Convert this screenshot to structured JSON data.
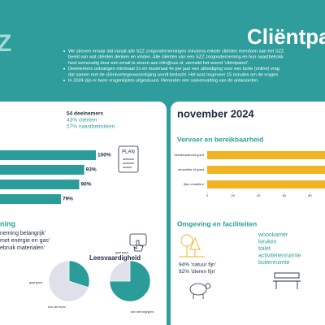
{
  "header": {
    "logo": "Z",
    "title": "Cliëntpa",
    "bullets": [
      [
        "We streven ernaar dat vanuit alle SZZ zorgondernemingen minstens enkele cliënten meedoen aan het SZZ",
        "beeld van wat cliënten denken en vinden. Alle cliënten van een SZZ zorgonderneming en hun naastbetrokk",
        "heel eenvoudig door een email te sturen aan info@szz.nl, vermeld het woord 'cliëntpanel'."
      ],
      [
        "Deelnemers ontvangen minimaal 2x en maximaal 4x per jaar een uitnodiging voor een korte (online) vrag",
        "dat samen met de cliëntvertegenwoordiging wordt bedacht. Het kost ongeveer 15 minuten om de vragen"
      ],
      [
        "In 2024 zijn er twee vragenlijsten uitgestuurd. Hieronder een samenvatting van de antwoorden."
      ]
    ]
  },
  "participants": {
    "total": "54 deelnemers",
    "clients": "43% cliënten",
    "relatives": "57% naastbetrokken"
  },
  "left_chart": {
    "type": "bar",
    "values": [
      100,
      93,
      90,
      79
    ],
    "value_labels": [
      "100%",
      "93%",
      "90%",
      "79%"
    ],
    "color": "#2a9d9a"
  },
  "plan_icon": "PLAN",
  "left_texts": {
    "heading": "ning",
    "lines": [
      "neming belangrijk'",
      "met energie en gas'",
      "ebruik materialen'"
    ]
  },
  "reading": {
    "title": "Leesvaardigheid",
    "pies": [
      {
        "type": "pie",
        "values": [
          30,
          70
        ],
        "labels": [
          "gaat goed",
          "kan niet lezen"
        ],
        "colors": [
          "#2a9d9a",
          "#dfe1ea"
        ]
      },
      {
        "type": "pie",
        "values": [
          75,
          25
        ],
        "labels": [
          "kan niet begrijpen",
          "gaat goed"
        ],
        "colors": [
          "#2a9d9a",
          "#dfe1ea"
        ]
      }
    ]
  },
  "right": {
    "date": "november 2024",
    "chart_title": "Vervoer en bereikbaarheid",
    "chart": {
      "type": "bar",
      "categories": [
        "bereikbaarheid goed",
        "eenzelfde rit goed",
        "fijne chauffeur"
      ],
      "values": [
        97,
        95,
        96
      ],
      "color": "#f0b323",
      "xlim": [
        0,
        100
      ],
      "xticks": [
        0,
        20,
        40,
        60,
        80,
        100
      ]
    },
    "env_title": "Omgeving en faciliteiten",
    "facilities": [
      "woonkamer",
      "keuken",
      "toilet",
      "activiteitenruimte",
      "buitenruimte"
    ],
    "quotes": [
      "94% 'natuur fijn'",
      "82% 'dieren fijn'"
    ]
  }
}
